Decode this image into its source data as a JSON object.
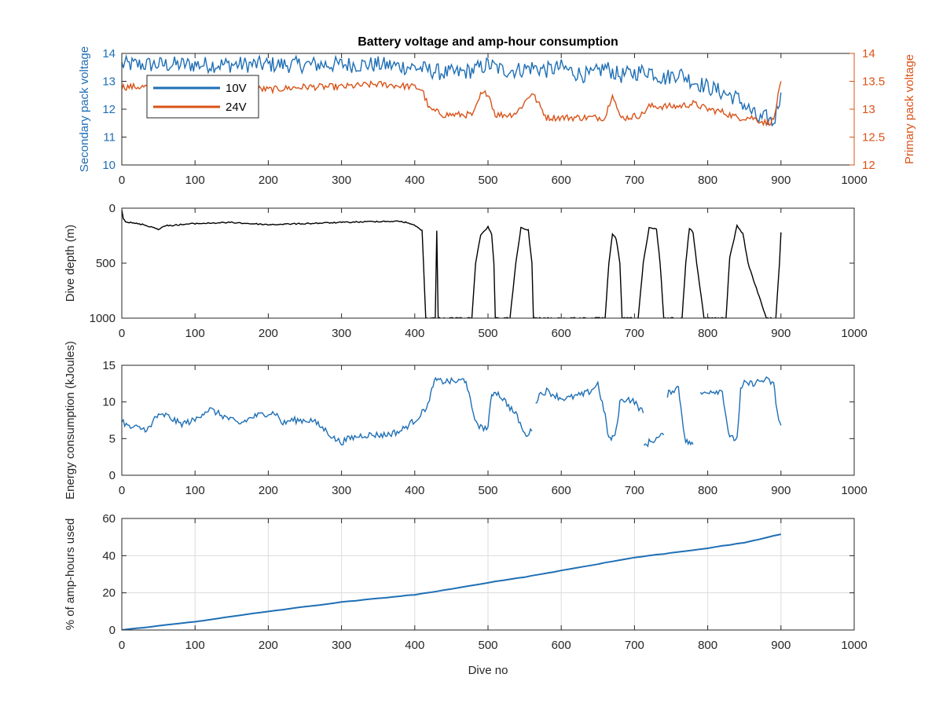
{
  "colors": {
    "blue": "#1f6fb5",
    "orange": "#d95319",
    "black": "#000000",
    "axis": "#262626",
    "grid": "#dcdcdc"
  },
  "chart_data": [
    {
      "type": "line",
      "title": "Battery voltage and amp-hour consumption",
      "xlabel": "",
      "ylabel": "Secondary pack voltage",
      "ylabel_right": "Primary pack voltage",
      "xlim": [
        0,
        1000
      ],
      "ylim": [
        10,
        14
      ],
      "ylim_right": [
        12,
        14
      ],
      "xticks": [
        0,
        100,
        200,
        300,
        400,
        500,
        600,
        700,
        800,
        900,
        1000
      ],
      "yticks": [
        10,
        11,
        12,
        13,
        14
      ],
      "yticks_right": [
        12,
        12.5,
        13,
        13.5,
        14
      ],
      "grid": false,
      "legend": "top-left",
      "series": [
        {
          "name": "10V",
          "axis": "left",
          "x": [
            0,
            20,
            40,
            60,
            80,
            100,
            150,
            200,
            250,
            300,
            350,
            400,
            420,
            440,
            460,
            480,
            500,
            520,
            540,
            560,
            580,
            600,
            620,
            640,
            660,
            680,
            700,
            720,
            740,
            760,
            780,
            800,
            820,
            840,
            860,
            870,
            880,
            890,
            900
          ],
          "y": [
            13.6,
            13.6,
            13.6,
            13.6,
            13.6,
            13.6,
            13.6,
            13.6,
            13.6,
            13.6,
            13.6,
            13.5,
            13.4,
            13.3,
            13.3,
            13.4,
            13.6,
            13.4,
            13.4,
            13.5,
            13.4,
            13.5,
            13.3,
            13.2,
            13.5,
            13.2,
            13.3,
            13.4,
            13.1,
            13.3,
            13.0,
            12.8,
            12.6,
            12.4,
            11.9,
            11.6,
            11.7,
            11.5,
            12.6
          ],
          "noise": 0.3
        },
        {
          "name": "24V",
          "axis": "right",
          "x": [
            0,
            20,
            40,
            60,
            80,
            100,
            150,
            200,
            250,
            300,
            350,
            400,
            410,
            420,
            440,
            460,
            480,
            490,
            500,
            510,
            530,
            540,
            560,
            580,
            600,
            620,
            640,
            650,
            660,
            670,
            680,
            690,
            710,
            720,
            740,
            760,
            780,
            800,
            820,
            840,
            860,
            880,
            890,
            900
          ],
          "y": [
            13.4,
            13.4,
            13.4,
            13.4,
            13.35,
            13.35,
            13.4,
            13.35,
            13.4,
            13.4,
            13.45,
            13.4,
            13.35,
            13.0,
            12.9,
            12.9,
            12.9,
            13.25,
            13.3,
            12.9,
            12.9,
            12.95,
            13.3,
            12.85,
            12.85,
            12.85,
            12.85,
            12.85,
            12.85,
            13.3,
            12.85,
            12.85,
            12.9,
            13.05,
            13.05,
            13.05,
            13.1,
            13.0,
            12.95,
            12.85,
            12.85,
            12.75,
            12.8,
            13.5
          ],
          "noise": 0.06
        }
      ]
    },
    {
      "type": "line",
      "title": "",
      "xlabel": "",
      "ylabel": "Dive depth (m)",
      "xlim": [
        0,
        1000
      ],
      "ylim": [
        0,
        1000
      ],
      "y_reversed": true,
      "xticks": [
        0,
        100,
        200,
        300,
        400,
        500,
        600,
        700,
        800,
        900,
        1000
      ],
      "yticks": [
        0,
        500,
        1000
      ],
      "grid": false,
      "series": [
        {
          "x": [
            0,
            2,
            5,
            10,
            30,
            50,
            60,
            100,
            150,
            200,
            250,
            300,
            350,
            380,
            395,
            405,
            410,
            415,
            420,
            425,
            428,
            430,
            432,
            435,
            440,
            470,
            478,
            483,
            490,
            500,
            505,
            508,
            510,
            515,
            530,
            538,
            545,
            555,
            560,
            562,
            565,
            580,
            650,
            660,
            665,
            670,
            675,
            680,
            683,
            690,
            705,
            712,
            720,
            730,
            735,
            740,
            760,
            765,
            770,
            775,
            780,
            785,
            795,
            820,
            825,
            830,
            840,
            848,
            855,
            880,
            890,
            893,
            898,
            900
          ],
          "y": [
            10,
            90,
            120,
            130,
            150,
            190,
            160,
            140,
            130,
            150,
            140,
            130,
            120,
            120,
            140,
            180,
            200,
            1000,
            1000,
            1000,
            1000,
            200,
            1000,
            1000,
            1000,
            1000,
            1000,
            500,
            250,
            170,
            240,
            500,
            1000,
            1000,
            1000,
            500,
            180,
            200,
            500,
            1000,
            1000,
            1000,
            1000,
            1000,
            500,
            230,
            280,
            500,
            1000,
            1000,
            1000,
            500,
            180,
            190,
            500,
            1000,
            1000,
            1000,
            500,
            180,
            220,
            500,
            1000,
            1000,
            1000,
            450,
            160,
            230,
            500,
            1000,
            1000,
            1000,
            500,
            220
          ],
          "noise": 6
        }
      ]
    },
    {
      "type": "line",
      "title": "",
      "xlabel": "",
      "ylabel": "Energy consumption (kJoules)",
      "xlim": [
        0,
        1000
      ],
      "ylim": [
        0,
        15
      ],
      "xticks": [
        0,
        100,
        200,
        300,
        400,
        500,
        600,
        700,
        800,
        900,
        1000
      ],
      "yticks": [
        0,
        5,
        10,
        15
      ],
      "grid": false,
      "series": [
        {
          "segments": [
            {
              "x": [
                0,
                10,
                20,
                30,
                40,
                45,
                50,
                60,
                80,
                100,
                110,
                120,
                130,
                140,
                160,
                180,
                200,
                210,
                220,
                230,
                240,
                260,
                280,
                290,
                300,
                310,
                330,
                350,
                360,
                380,
                400,
                410,
                420,
                425,
                430,
                435,
                440,
                460,
                465,
                470,
                480,
                490,
                500,
                505,
                510,
                520,
                540,
                550,
                560
              ],
              "y": [
                7.5,
                6.5,
                6.5,
                6.3,
                6.5,
                8,
                8,
                8.2,
                7,
                7.5,
                8.5,
                9,
                8.5,
                8,
                7,
                8,
                8.5,
                8.5,
                7,
                7.5,
                7.5,
                7.5,
                6,
                5,
                4.5,
                5,
                5.5,
                5.5,
                5.5,
                6,
                7.5,
                8.5,
                10,
                12.5,
                13,
                12.8,
                12.8,
                12.8,
                13,
                13,
                8,
                6.5,
                6.5,
                11,
                11.5,
                10.5,
                8,
                5.5,
                6
              ]
            },
            {
              "x": [
                565,
                570,
                580,
                590,
                600,
                610,
                620,
                630,
                640,
                650,
                660,
                665,
                670,
                675,
                680,
                690,
                700,
                708,
                712
              ],
              "y": [
                10,
                11,
                11.5,
                11,
                10.5,
                10.5,
                10.8,
                11,
                11.5,
                12.5,
                8,
                5,
                5,
                6,
                10,
                10.5,
                10,
                9,
                8.5
              ]
            },
            {
              "x": [
                713,
                720,
                730,
                740
              ],
              "y": [
                4,
                4.5,
                5,
                5.5
              ]
            },
            {
              "x": [
                745,
                750,
                760,
                765,
                770,
                775,
                780
              ],
              "y": [
                11,
                11.5,
                12,
                8,
                4.5,
                4.5,
                4.2
              ]
            },
            {
              "x": [
                790,
                800,
                820,
                825,
                830,
                840,
                845,
                850,
                860,
                870,
                880,
                890,
                893,
                897,
                900
              ],
              "y": [
                11,
                11.5,
                11.5,
                8,
                5,
                5,
                11.5,
                12.5,
                12.5,
                12.8,
                13,
                12.5,
                10,
                7.5,
                6.8
              ]
            }
          ],
          "noise": 0.45
        }
      ]
    },
    {
      "type": "line",
      "title": "",
      "xlabel": "Dive no",
      "ylabel": "% of amp-hours used",
      "xlim": [
        0,
        1000
      ],
      "ylim": [
        0,
        60
      ],
      "xticks": [
        0,
        100,
        200,
        300,
        400,
        500,
        600,
        700,
        800,
        900,
        1000
      ],
      "yticks": [
        0,
        20,
        40,
        60
      ],
      "grid": true,
      "series": [
        {
          "x": [
            0,
            100,
            200,
            300,
            400,
            450,
            500,
            550,
            600,
            650,
            700,
            750,
            800,
            850,
            900
          ],
          "y": [
            0,
            4.5,
            10,
            15,
            19,
            22,
            25.5,
            28.5,
            32,
            35.5,
            39,
            41.5,
            44,
            47,
            51.5
          ],
          "noise": 0.1
        }
      ]
    }
  ]
}
